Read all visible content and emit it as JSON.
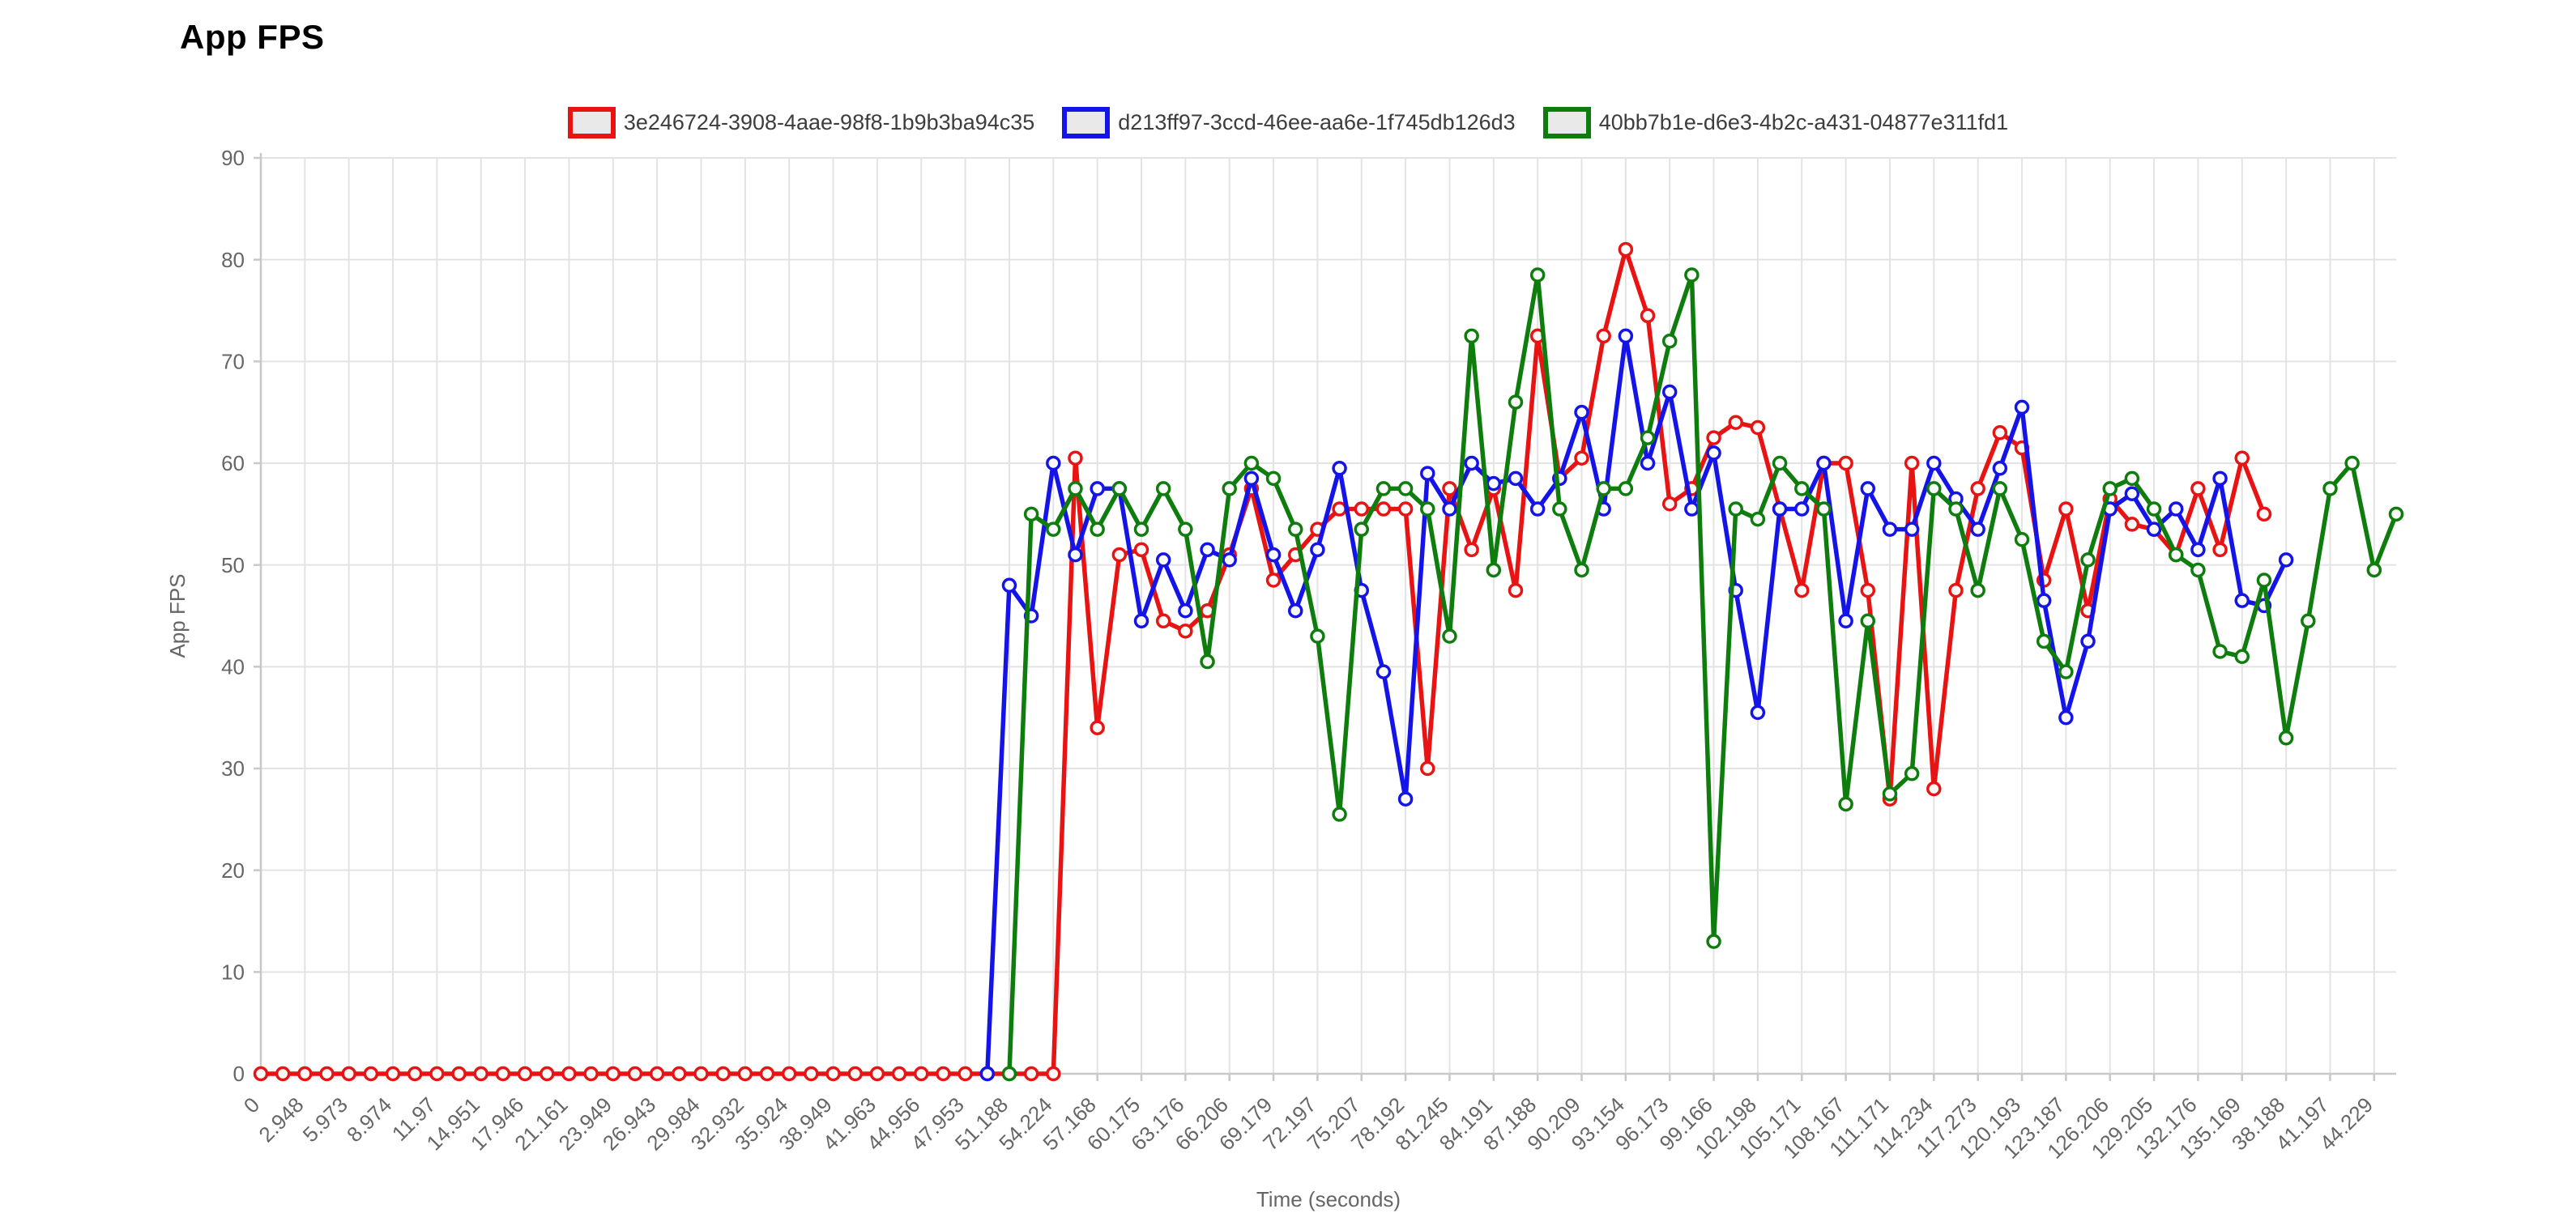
{
  "page": {
    "title": "App FPS"
  },
  "chart_data": {
    "type": "line",
    "title": "App FPS",
    "xlabel": "Time (seconds)",
    "ylabel": "App FPS",
    "ylim": [
      0,
      90
    ],
    "y_ticks": [
      0,
      10,
      20,
      30,
      40,
      50,
      60,
      70,
      80,
      90
    ],
    "grid": "on",
    "legend_position": "top-center",
    "x_tick_labels": [
      "0",
      "2.948",
      "5.973",
      "8.974",
      "11.97",
      "14.951",
      "17.946",
      "21.161",
      "23.949",
      "26.943",
      "29.984",
      "32.932",
      "35.924",
      "38.949",
      "41.963",
      "44.956",
      "47.953",
      "51.188",
      "54.224",
      "57.168",
      "60.175",
      "63.176",
      "66.206",
      "69.179",
      "72.197",
      "75.207",
      "78.192",
      "81.245",
      "84.191",
      "87.188",
      "90.209",
      "93.154",
      "96.173",
      "99.166",
      "102.198",
      "105.171",
      "108.167",
      "111.171",
      "114.234",
      "117.273",
      "120.193",
      "123.187",
      "126.206",
      "129.205",
      "132.176",
      "135.169",
      "38.188",
      "41.197",
      "44.229"
    ],
    "samples_per_label_interval": 2,
    "total_sample_slots": 98,
    "marker_fill": "#fafafa",
    "grid_color": "#e3e3e3",
    "axis_color": "#c8c8c8",
    "tick_label_color": "#666666",
    "series": [
      {
        "name": "3e246724-3908-4aae-98f8-1b9b3ba94c35",
        "color": "#e81414",
        "start_index": 0,
        "values": [
          0,
          0,
          0,
          0,
          0,
          0,
          0,
          0,
          0,
          0,
          0,
          0,
          0,
          0,
          0,
          0,
          0,
          0,
          0,
          0,
          0,
          0,
          0,
          0,
          0,
          0,
          0,
          0,
          0,
          0,
          0,
          0,
          0,
          0,
          0,
          0,
          0,
          60.5,
          34,
          51,
          51.5,
          44.5,
          43.5,
          45.5,
          51,
          57.5,
          48.5,
          51,
          53.5,
          55.5,
          55.5,
          55.5,
          55.5,
          30,
          57.5,
          51.5,
          57.5,
          47.5,
          72.5,
          58.5,
          60.5,
          72.5,
          81,
          74.5,
          56,
          57.5,
          62.5,
          64,
          63.5,
          55.5,
          47.5,
          60,
          60,
          47.5,
          27,
          60,
          28,
          47.5,
          57.5,
          63,
          61.5,
          48.5,
          55.5,
          45.5,
          56.5,
          54,
          53.5,
          51,
          57.5,
          51.5,
          60.5,
          55
        ]
      },
      {
        "name": "d213ff97-3ccd-46ee-aa6e-1f745db126d3",
        "color": "#1414e8",
        "start_index": 33,
        "values": [
          0,
          48,
          45,
          60,
          51,
          57.5,
          57.5,
          44.5,
          50.5,
          45.5,
          51.5,
          50.5,
          58.5,
          51,
          45.5,
          51.5,
          59.5,
          47.5,
          39.5,
          27,
          59,
          55.5,
          60,
          58,
          58.5,
          55.5,
          58.5,
          65,
          55.5,
          72.5,
          60,
          67,
          55.5,
          61,
          47.5,
          35.5,
          55.5,
          55.5,
          60,
          44.5,
          57.5,
          53.5,
          53.5,
          60,
          56.5,
          53.5,
          59.5,
          65.5,
          46.5,
          35,
          42.5,
          55.5,
          57,
          53.5,
          55.5,
          51.5,
          58.5,
          46.5,
          46,
          50.5
        ]
      },
      {
        "name": "40bb7b1e-d6e3-4b2c-a431-04877e311fd1",
        "color": "#0e7d0e",
        "start_index": 34,
        "values": [
          0,
          55,
          53.5,
          57.5,
          53.5,
          57.5,
          53.5,
          57.5,
          53.5,
          40.5,
          57.5,
          60,
          58.5,
          53.5,
          43,
          25.5,
          53.5,
          57.5,
          57.5,
          55.5,
          43,
          72.5,
          49.5,
          66,
          78.5,
          55.5,
          49.5,
          57.5,
          57.5,
          62.5,
          72,
          78.5,
          13,
          55.5,
          54.5,
          60,
          57.5,
          55.5,
          26.5,
          44.5,
          27.5,
          29.5,
          57.5,
          55.5,
          47.5,
          57.5,
          52.5,
          42.5,
          39.5,
          50.5,
          57.5,
          58.5,
          55.5,
          51,
          49.5,
          41.5,
          41,
          48.5,
          33,
          44.5,
          57.5,
          60,
          49.5,
          55
        ]
      }
    ],
    "layout": {
      "plot_left": 322,
      "plot_right": 2958,
      "plot_top": 195,
      "plot_bottom": 1326,
      "line_width": 5.5,
      "marker_radius": 7.5,
      "marker_stroke": 3.5
    }
  }
}
